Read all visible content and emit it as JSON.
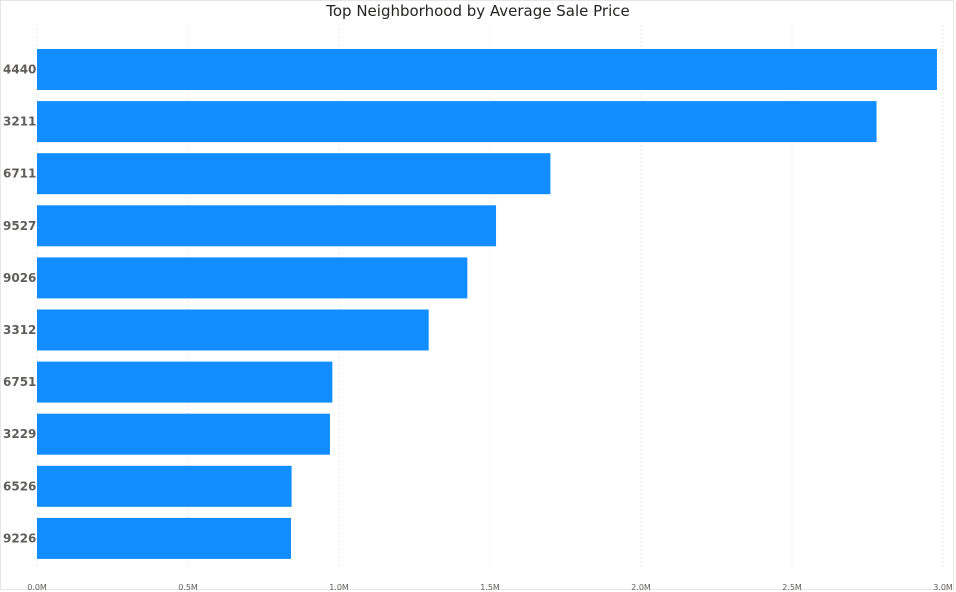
{
  "chart_data": {
    "type": "bar",
    "orientation": "horizontal",
    "title": "Top Neighborhood by Average Sale Price",
    "xlabel": "",
    "ylabel": "",
    "categories": [
      "4440",
      "3211",
      "6711",
      "9527",
      "9026",
      "3312",
      "6751",
      "3229",
      "6526",
      "9226"
    ],
    "values": [
      2980000,
      2780000,
      1700000,
      1520000,
      1425000,
      1297000,
      978000,
      970000,
      843000,
      841000
    ],
    "xlim": [
      0,
      3000000
    ],
    "xticks": [
      0,
      500000,
      1000000,
      1500000,
      2000000,
      2500000,
      3000000
    ],
    "xtick_labels": [
      "0.0M",
      "0.5M",
      "1.0M",
      "1.5M",
      "2.0M",
      "2.5M",
      "3.0M"
    ],
    "grid": true,
    "bar_color": "#118DFF",
    "grid_color": "#d9d9d9"
  }
}
